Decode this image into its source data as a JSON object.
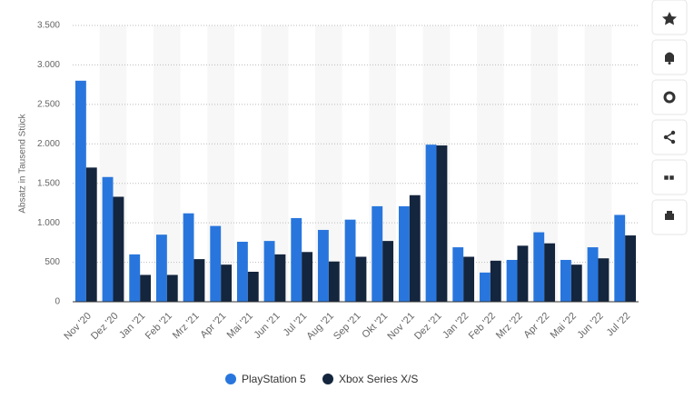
{
  "chart_data": {
    "type": "bar",
    "y_label": "Absatz in Tausend Stück",
    "categories": [
      "Nov '20",
      "Dez '20",
      "Jan '21",
      "Feb '21",
      "Mrz '21",
      "Apr '21",
      "Mai '21",
      "Jun '21",
      "Jul '21",
      "Aug '21",
      "Sep '21",
      "Okt '21",
      "Nov '21",
      "Dez '21",
      "Jan '22",
      "Feb '22",
      "Mrz '22",
      "Apr '22",
      "Mai '22",
      "Jun '22",
      "Jul '22"
    ],
    "series": [
      {
        "name": "PlayStation 5",
        "color": "#2876dd",
        "values": [
          2800,
          1580,
          600,
          850,
          1120,
          960,
          760,
          770,
          1060,
          910,
          1040,
          1210,
          1210,
          1990,
          690,
          370,
          530,
          880,
          530,
          690,
          1100
        ]
      },
      {
        "name": "Xbox Series X/S",
        "color": "#14253e",
        "values": [
          1700,
          1330,
          340,
          340,
          540,
          470,
          380,
          600,
          630,
          510,
          570,
          770,
          1350,
          1980,
          570,
          520,
          710,
          740,
          470,
          550,
          840
        ]
      }
    ],
    "ylim": [
      0,
      3500
    ],
    "yticks": [
      0,
      {
        "value": 500,
        "label": "500"
      },
      {
        "value": 1000,
        "label": "1.000"
      },
      {
        "value": 1500,
        "label": "1.500"
      },
      {
        "value": 2000,
        "label": "2.000"
      },
      {
        "value": 2500,
        "label": "2.500"
      },
      {
        "value": 3000,
        "label": "3.000"
      },
      {
        "value": 3500,
        "label": "3.500"
      }
    ],
    "grid": true,
    "legend": "bottom"
  }
}
